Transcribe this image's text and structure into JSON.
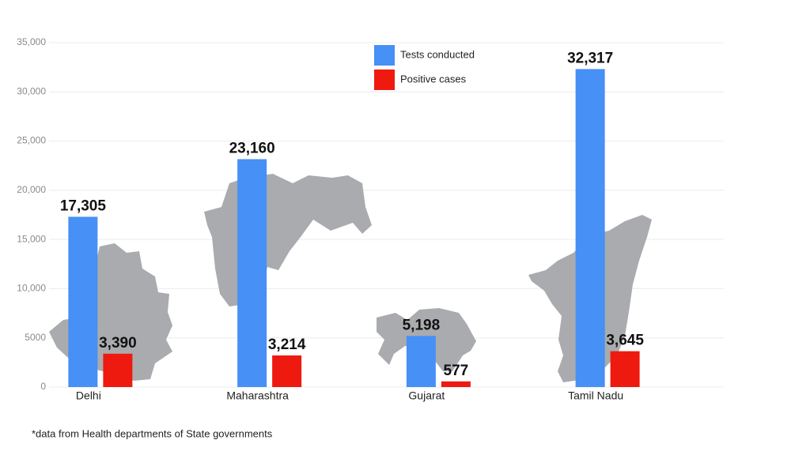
{
  "chart_data": {
    "type": "bar",
    "categories": [
      "Delhi",
      "Maharashtra",
      "Gujarat",
      "Tamil Nadu"
    ],
    "series": [
      {
        "name": "Tests conducted",
        "color": "#4690f6",
        "values": [
          17305,
          23160,
          5198,
          32317
        ],
        "value_labels": [
          "17,305",
          "23,160",
          "5,198",
          "32,317"
        ]
      },
      {
        "name": "Positive cases",
        "color": "#ee1a10",
        "values": [
          3390,
          3214,
          577,
          3645
        ],
        "value_labels": [
          "3,390",
          "3,214",
          "577",
          "3,645"
        ]
      }
    ],
    "ylim": [
      0,
      35000
    ],
    "yticks": [
      0,
      5000,
      {
        "value": 10000,
        "label": "10,000"
      },
      {
        "value": 15000,
        "label": "15,000"
      },
      {
        "value": 20000,
        "label": "20,000"
      },
      {
        "value": 25000,
        "label": "25,000"
      },
      {
        "value": 30000,
        "label": "30,000"
      },
      {
        "value": 35000,
        "label": "35,000"
      }
    ],
    "grid": true,
    "legend": "top",
    "footnote": "*data from Health departments of State governments"
  }
}
